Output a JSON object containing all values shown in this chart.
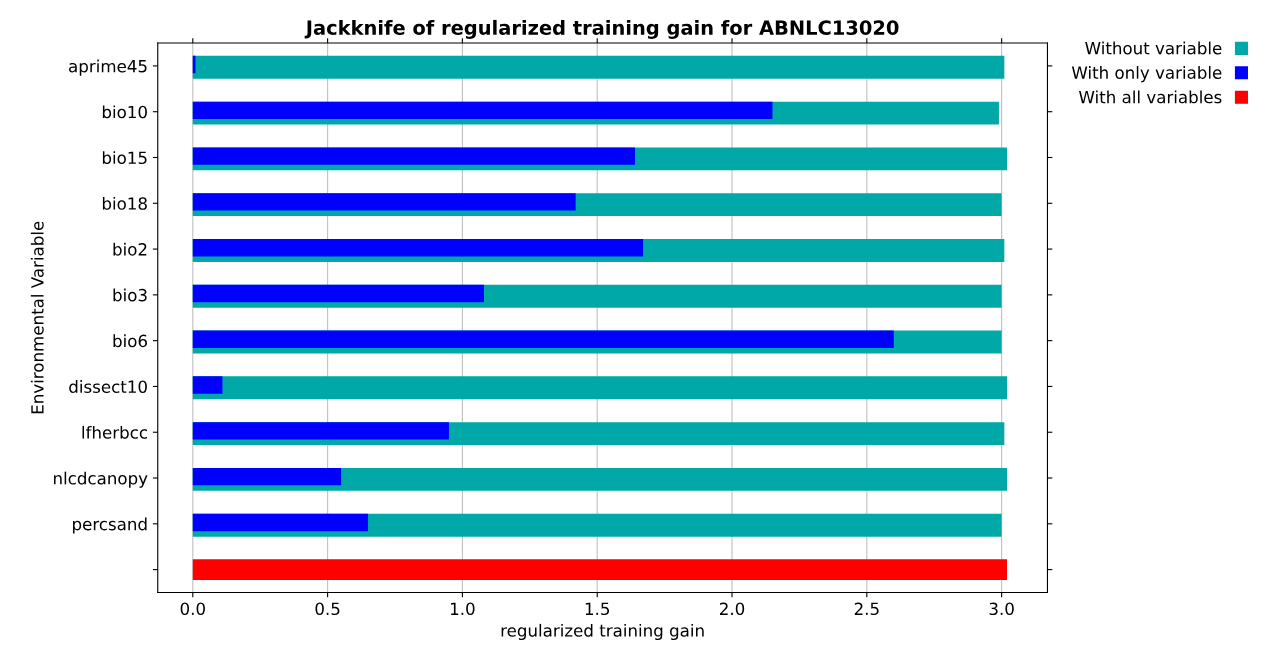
{
  "chart_data": {
    "type": "bar",
    "orientation": "horizontal",
    "title": "Jackknife of regularized training gain for ABNLC13020",
    "xlabel": "regularized training gain",
    "ylabel": "Environmental Variable",
    "categories": [
      "aprime45",
      "bio10",
      "bio15",
      "bio18",
      "bio2",
      "bio3",
      "bio6",
      "dissect10",
      "lfherbcc",
      "nlcdcanopy",
      "percsand",
      null
    ],
    "series": [
      {
        "name": "Without variable",
        "color": "#00a8a8",
        "values": [
          3.01,
          2.99,
          3.02,
          3.0,
          3.01,
          3.0,
          3.0,
          3.02,
          3.01,
          3.02,
          3.0,
          null
        ]
      },
      {
        "name": "With only variable",
        "color": "#0000ff",
        "values": [
          0.01,
          2.15,
          1.64,
          1.42,
          1.67,
          1.08,
          2.6,
          0.11,
          0.95,
          0.55,
          0.65,
          null
        ]
      },
      {
        "name": "With all variables",
        "color": "#ff0000",
        "values": [
          null,
          null,
          null,
          null,
          null,
          null,
          null,
          null,
          null,
          null,
          null,
          3.02
        ]
      }
    ],
    "xlim": [
      -0.13,
      3.17
    ],
    "xticks": [
      {
        "value": 0,
        "label": "0.0"
      },
      {
        "value": 0.5,
        "label": "0.5"
      },
      {
        "value": 1,
        "label": "1.0"
      },
      {
        "value": 1.5,
        "label": "1.5"
      },
      {
        "value": 2,
        "label": "2.0"
      },
      {
        "value": 2.5,
        "label": "2.5"
      },
      {
        "value": 3,
        "label": "3.0"
      }
    ],
    "grid": "x",
    "legend": "top right"
  }
}
